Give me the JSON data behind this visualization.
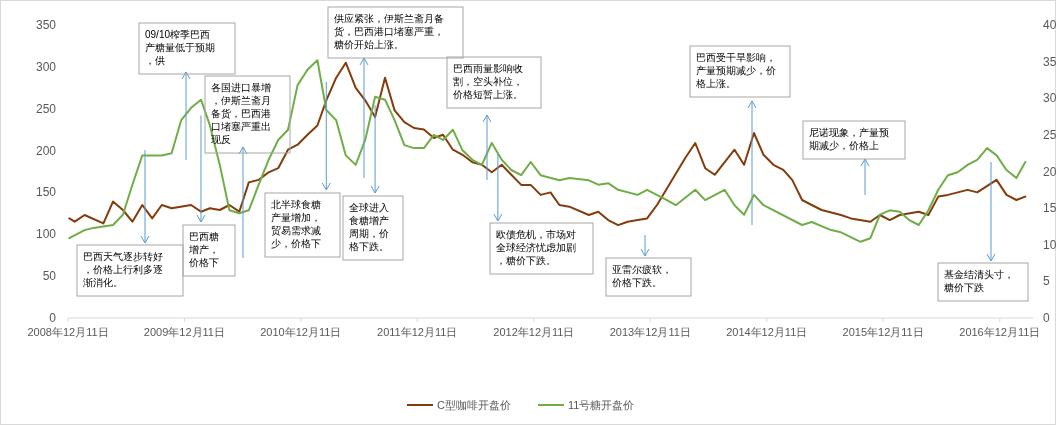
{
  "chart_data": {
    "type": "line",
    "xlim": [
      "2008-12-11",
      "2017-03-25"
    ],
    "xticks": [
      {
        "value": "2008-12-11",
        "label": "2008年12月11日"
      },
      {
        "value": "2009-12-11",
        "label": "2009年12月11日"
      },
      {
        "value": "2010-12-11",
        "label": "2010年12月11日"
      },
      {
        "value": "2011-12-11",
        "label": "2011年12月11日"
      },
      {
        "value": "2012-12-11",
        "label": "2012年12月11日"
      },
      {
        "value": "2013-12-11",
        "label": "2013年12月11日"
      },
      {
        "value": "2014-12-11",
        "label": "2014年12月11日"
      },
      {
        "value": "2015-12-11",
        "label": "2015年12月11日"
      },
      {
        "value": "2016-12-11",
        "label": "2016年12月11日"
      }
    ],
    "ylim": [
      0,
      350
    ],
    "yticks": [
      0,
      50,
      100,
      150,
      200,
      250,
      300,
      350
    ],
    "y2lim": [
      0,
      40
    ],
    "y2ticks": [
      0,
      5,
      10,
      15,
      20,
      25,
      30,
      35,
      40
    ],
    "legend": "bottom",
    "series": [
      {
        "name": "C型咖啡开盘价",
        "color": "#843c0c",
        "x": [
          "2008-12-15",
          "2009-01",
          "2009-02",
          "2009-04",
          "2009-05",
          "2009-06",
          "2009-07",
          "2009-08",
          "2009-09",
          "2009-10",
          "2009-11",
          "2010-01",
          "2010-02",
          "2010-03",
          "2010-04",
          "2010-05",
          "2010-06",
          "2010-07",
          "2010-08",
          "2010-09",
          "2010-10",
          "2010-11",
          "2010-12",
          "2011-01",
          "2011-02",
          "2011-03",
          "2011-04",
          "2011-05",
          "2011-06",
          "2011-07",
          "2011-08",
          "2011-09",
          "2011-10",
          "2011-11",
          "2011-12",
          "2012-01",
          "2012-02",
          "2012-03",
          "2012-04",
          "2012-05",
          "2012-06",
          "2012-07",
          "2012-08",
          "2012-09",
          "2012-10",
          "2012-11",
          "2012-12",
          "2013-01",
          "2013-02",
          "2013-03",
          "2013-04",
          "2013-06",
          "2013-07",
          "2013-08",
          "2013-09",
          "2013-10",
          "2013-11",
          "2013-12",
          "2014-01",
          "2014-04",
          "2014-05",
          "2014-06",
          "2014-07",
          "2014-09",
          "2014-10",
          "2014-11",
          "2014-12",
          "2015-01",
          "2015-02",
          "2015-03",
          "2015-04",
          "2015-05",
          "2015-06",
          "2015-08",
          "2015-09",
          "2015-11",
          "2015-12",
          "2016-01",
          "2016-02",
          "2016-04",
          "2016-05",
          "2016-06",
          "2016-07",
          "2016-09",
          "2016-10",
          "2016-12",
          "2017-01",
          "2017-02",
          "2017-03"
        ],
        "values": [
          119,
          115,
          123,
          113,
          139,
          129,
          115,
          135,
          119,
          135,
          131,
          135,
          127,
          131,
          129,
          135,
          127,
          162,
          165,
          174,
          179,
          201,
          207,
          219,
          230,
          260,
          287,
          305,
          275,
          260,
          240,
          287,
          248,
          234,
          227,
          225,
          215,
          219,
          201,
          195,
          186,
          183,
          174,
          183,
          171,
          159,
          159,
          147,
          150,
          135,
          133,
          123,
          127,
          117,
          111,
          115,
          117,
          119,
          135,
          192,
          209,
          179,
          171,
          201,
          183,
          221,
          195,
          183,
          177,
          165,
          141,
          135,
          129,
          123,
          119,
          115,
          123,
          117,
          123,
          127,
          123,
          145,
          147,
          153,
          150,
          165,
          147,
          141,
          145
        ]
      },
      {
        "name": "11号糖开盘价",
        "color": "#70ad47",
        "axis": "y2",
        "x": [
          "2008-12-15",
          "2009-02",
          "2009-03",
          "2009-05",
          "2009-06",
          "2009-07",
          "2009-08",
          "2009-10",
          "2009-11",
          "2009-12",
          "2010-01",
          "2010-02",
          "2010-03",
          "2010-04",
          "2010-05",
          "2010-06",
          "2010-07",
          "2010-08",
          "2010-09",
          "2010-10",
          "2010-11",
          "2010-12",
          "2011-01",
          "2011-02",
          "2011-03",
          "2011-04",
          "2011-05",
          "2011-06",
          "2011-07",
          "2011-08",
          "2011-09",
          "2011-10",
          "2011-11",
          "2011-12",
          "2012-01",
          "2012-02",
          "2012-03",
          "2012-04",
          "2012-05",
          "2012-06",
          "2012-07",
          "2012-08",
          "2012-09",
          "2012-10",
          "2012-11",
          "2012-12",
          "2013-01",
          "2013-03",
          "2013-04",
          "2013-06",
          "2013-07",
          "2013-08",
          "2013-09",
          "2013-11",
          "2013-12",
          "2014-02",
          "2014-03",
          "2014-05",
          "2014-06",
          "2014-08",
          "2014-09",
          "2014-10",
          "2014-11",
          "2014-12",
          "2015-04",
          "2015-05",
          "2015-07",
          "2015-08",
          "2015-10",
          "2015-11",
          "2015-12",
          "2016-01",
          "2016-02",
          "2016-03",
          "2016-04",
          "2016-05",
          "2016-06",
          "2016-07",
          "2016-08",
          "2016-09",
          "2016-10",
          "2016-11",
          "2016-12",
          "2017-01",
          "2017-02",
          "2017-03"
        ],
        "values": [
          10.9,
          12.0,
          12.3,
          12.7,
          14.1,
          18.2,
          22.2,
          22.2,
          22.5,
          27.0,
          28.7,
          29.8,
          26.3,
          20.9,
          14.7,
          14.3,
          14.7,
          18.2,
          21.6,
          24.3,
          25.7,
          31.8,
          33.9,
          35.2,
          28.4,
          27.0,
          22.2,
          20.9,
          24.3,
          30.2,
          29.8,
          27.0,
          23.6,
          23.2,
          23.2,
          25.0,
          24.3,
          25.7,
          22.9,
          21.6,
          20.9,
          23.9,
          21.6,
          20.2,
          19.5,
          21.3,
          19.5,
          18.8,
          19.1,
          18.8,
          18.2,
          18.4,
          17.5,
          16.8,
          17.5,
          16.1,
          15.4,
          17.5,
          16.1,
          17.5,
          15.4,
          14.1,
          16.8,
          15.4,
          12.7,
          13.1,
          12.0,
          11.7,
          10.4,
          10.9,
          14.1,
          14.7,
          14.5,
          13.4,
          12.7,
          14.7,
          17.5,
          19.5,
          19.9,
          20.9,
          21.6,
          23.2,
          22.2,
          20.2,
          19.1,
          21.3
        ]
      }
    ],
    "annotations": [
      "09/10榨季巴西产糖量低于预期，供",
      "各国进口暴增，伊斯兰斋月备货，巴西港口堵塞严重出现反",
      "供应紧张，伊斯兰斋月备货，巴西港口堵塞严重，糖价开始上涨。",
      "巴西雨量影响收割，空头补位，价格短暂上涨。",
      "巴西受干旱影响，产量预期减少，价格上涨。",
      "尼诺现象，产量预期减少，价格上",
      "巴西天气逐步转好，价格上行利多逐渐消化。",
      {
        "text": "巴西糖增产，价格下",
        "x": "2010-02",
        "y": 242
      },
      {
        "text": "北半球食糖产量增加，贸易需求减少，价格下",
        "x": "2011-03",
        "y": 282
      },
      {
        "text": "全球进入食糖增产周期，价格下跌。",
        "x": "2011-08",
        "y": 254
      },
      {
        "text": "欧债危机，市场对全球经济忧虑加剧，糖价下跌。",
        "x": "2012-08-20",
        "y": 197
      },
      "亚雷尔疲软，价格下跌。",
      "基金结清头寸，糖价下跌"
    ]
  }
}
